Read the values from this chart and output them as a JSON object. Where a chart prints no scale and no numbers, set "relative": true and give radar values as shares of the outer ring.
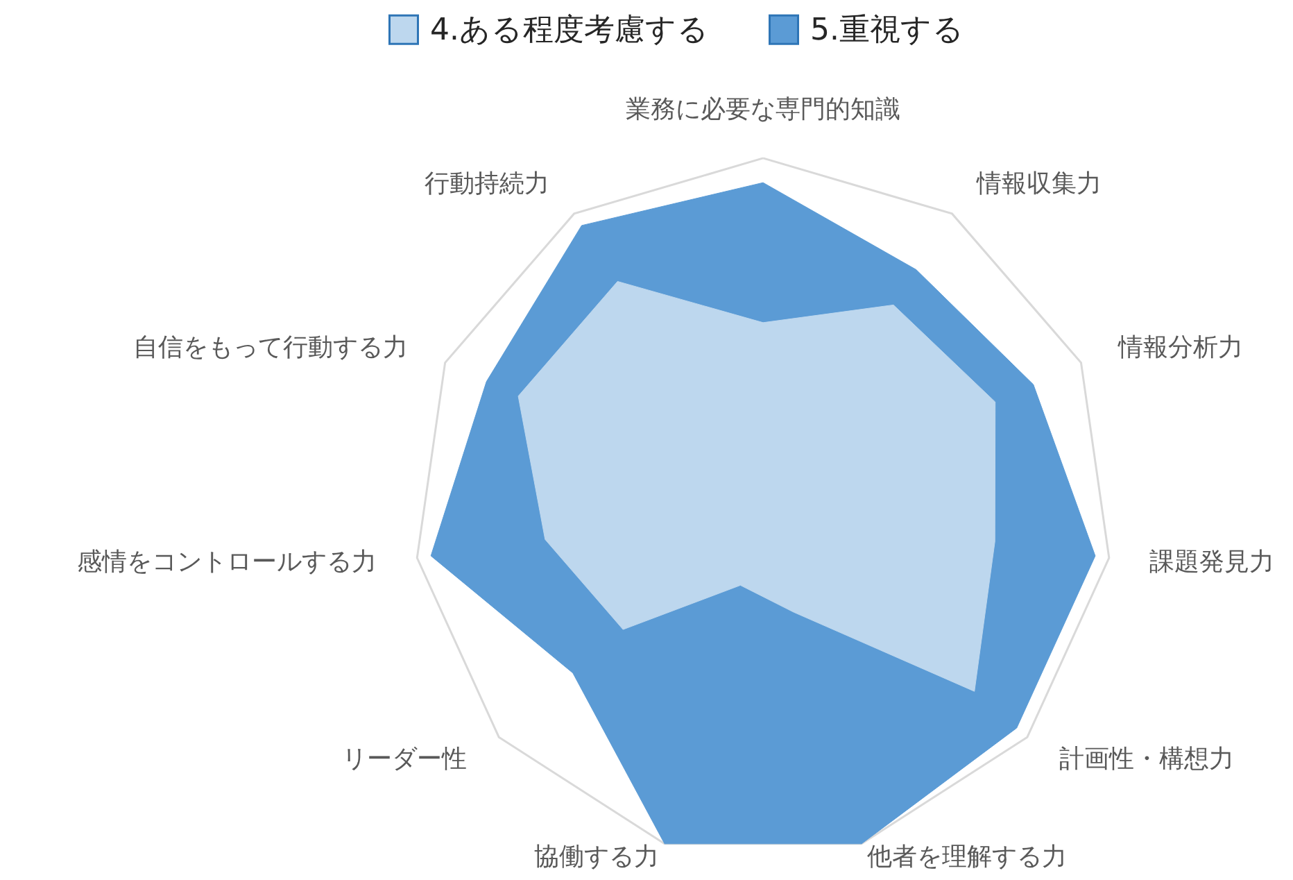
{
  "chart_data": {
    "type": "radar",
    "relative": true,
    "grid": true,
    "legend": "top",
    "categories": [
      "業務に必要な専門的知識",
      "情報収集力",
      "情報分析力",
      "課題発見力",
      "計画性・構想力",
      "他者を理解する力",
      "協働する力",
      "リーダー性",
      "感情をコントロールする力",
      "自信をもって行動する力",
      "行動持続力"
    ],
    "series": [
      {
        "name": "4.ある程度考慮する",
        "color": "#bdd7ee",
        "values": [
          0.53,
          0.69,
          0.73,
          0.67,
          0.8,
          0.31,
          0.23,
          0.53,
          0.63,
          0.77,
          0.77
        ]
      },
      {
        "name": "5.重視する",
        "color": "#5b9bd5",
        "values": [
          0.93,
          0.81,
          0.85,
          0.96,
          0.96,
          1.0,
          1.0,
          0.72,
          0.96,
          0.87,
          0.96
        ]
      }
    ]
  }
}
